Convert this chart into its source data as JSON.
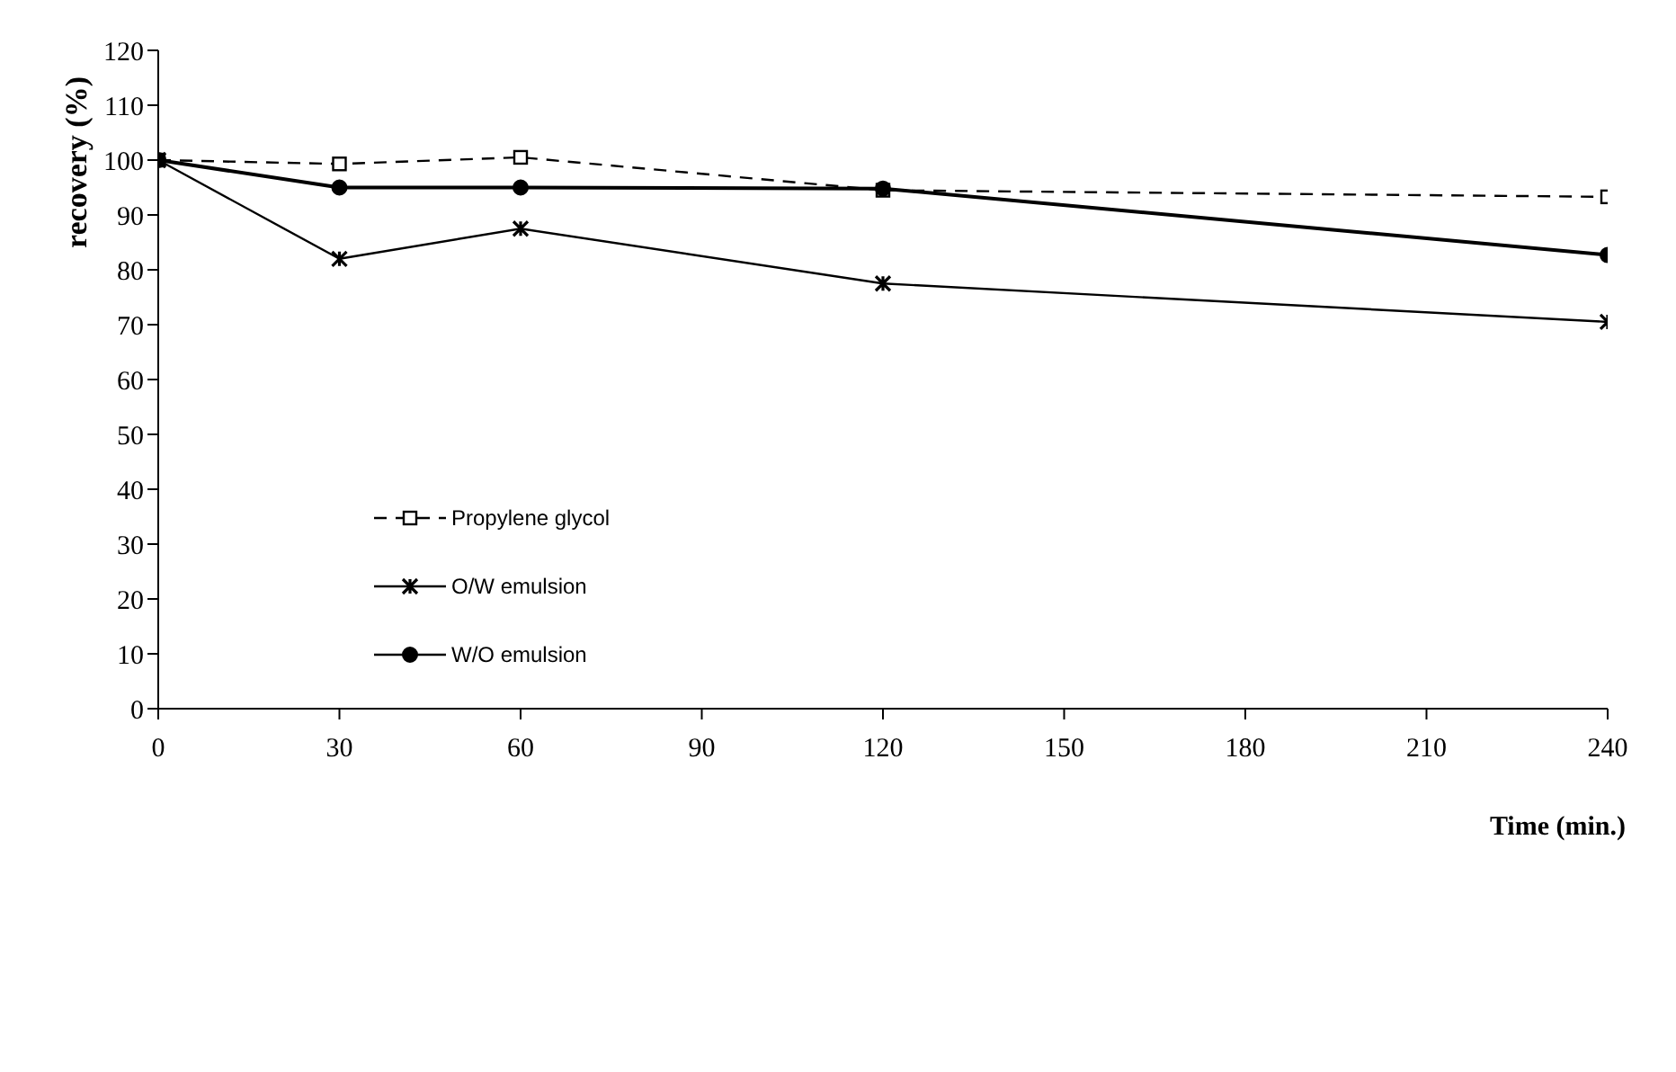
{
  "chart_data": {
    "type": "line",
    "xlabel": "Time (min.)",
    "ylabel": "recovery (%)",
    "x": [
      0,
      30,
      60,
      120,
      240
    ],
    "series": [
      {
        "name": "Propylene glycol",
        "color": "#000000",
        "values": [
          100,
          99.3,
          100.5,
          94.5,
          93.3
        ],
        "marker": "square",
        "line_style": "dashed"
      },
      {
        "name": "O/W emulsion",
        "color": "#000000",
        "values": [
          100,
          82,
          87.5,
          77.5,
          70.5
        ],
        "marker": "cross",
        "line_style": "solid"
      },
      {
        "name": "W/O emulsion",
        "color": "#000000",
        "values": [
          100,
          95,
          95,
          94.8,
          82.7
        ],
        "marker": "circle",
        "line_style": "solid"
      }
    ],
    "xlim": [
      0,
      240
    ],
    "xticks": [
      0,
      30,
      60,
      90,
      120,
      150,
      180,
      210,
      240
    ],
    "ylim": [
      0,
      120
    ],
    "yticks": [
      0,
      10,
      20,
      30,
      40,
      50,
      60,
      70,
      80,
      90,
      100,
      110,
      120
    ],
    "grid": false,
    "legend": "left"
  }
}
